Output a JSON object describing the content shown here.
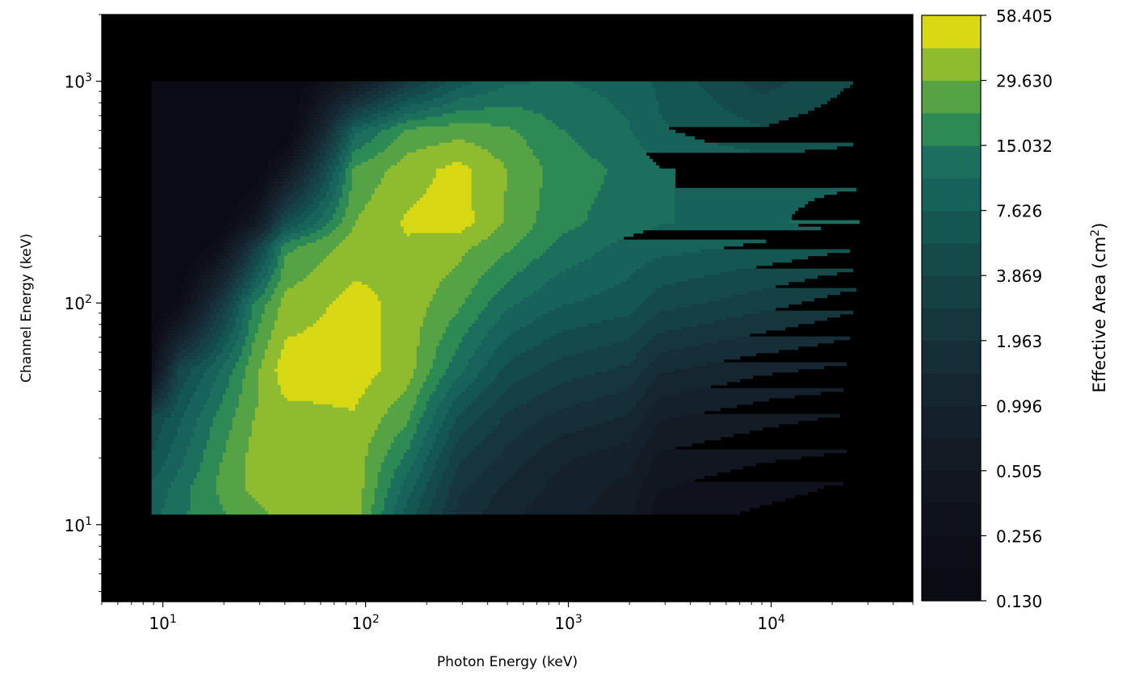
{
  "chart_data": {
    "type": "contour",
    "xlabel": "Photon Energy (keV)",
    "ylabel": "Channel Energy (keV)",
    "x_scale": "log",
    "y_scale": "log",
    "xlim": [
      5,
      50000
    ],
    "ylim": [
      4.5,
      2000
    ],
    "x_ticks": [
      {
        "base": "10",
        "exp": "1"
      },
      {
        "base": "10",
        "exp": "2"
      },
      {
        "base": "10",
        "exp": "3"
      },
      {
        "base": "10",
        "exp": "4"
      }
    ],
    "y_ticks": [
      {
        "base": "10",
        "exp": "1"
      },
      {
        "base": "10",
        "exp": "2"
      },
      {
        "base": "10",
        "exp": "3"
      }
    ],
    "background_color": "#000000",
    "grid": false,
    "colorbar": {
      "label": "Effective Area (cm",
      "label_sup": "2",
      "label_tail": ")",
      "ticks": [
        "58.405",
        "29.630",
        "15.032",
        "7.626",
        "3.869",
        "1.963",
        "0.996",
        "0.505",
        "0.256",
        "0.130"
      ],
      "min": 0.13,
      "max": 82,
      "colors": [
        "#0b0b14",
        "#0d0e17",
        "#0f111c",
        "#111620",
        "#131b25",
        "#14202b",
        "#152631",
        "#162e37",
        "#16363d",
        "#154044",
        "#144b4a",
        "#135652",
        "#17625a",
        "#1b6f5c",
        "#2e8a55",
        "#55a345",
        "#8fbc2f",
        "#d8d815"
      ]
    },
    "data_region": {
      "x_range": [
        8.8,
        28000
      ],
      "y_range": [
        11,
        1000
      ],
      "description_levels": "effective area peaks near photon 30-300 keV and channel 40-400 keV"
    },
    "x_grid": [
      8.8,
      12,
      18,
      28,
      40,
      88,
      160,
      290,
      500,
      900,
      2000,
      2800,
      9000,
      28000
    ],
    "y_grid": [
      11,
      15,
      20,
      30,
      50,
      100,
      180,
      230,
      400,
      600,
      1000
    ],
    "z": [
      [
        12,
        18,
        25,
        35,
        45,
        50,
        8,
        2.0,
        1.2,
        0.9,
        0.6,
        0.3,
        0.25,
        0.22
      ],
      [
        10,
        16,
        28,
        45,
        50,
        52,
        12,
        2.5,
        1.5,
        1.0,
        0.7,
        0.4,
        0.3,
        0.25
      ],
      [
        7,
        12,
        25,
        45,
        50,
        50,
        18,
        3.5,
        2.0,
        1.2,
        0.9,
        0.5,
        0.4,
        0.35
      ],
      [
        5,
        9,
        20,
        40,
        50,
        55,
        30,
        6,
        3.0,
        2.0,
        1.5,
        0.8,
        0.6,
        0.5
      ],
      [
        0.3,
        5,
        12,
        35,
        70,
        70,
        48,
        15,
        6,
        4.0,
        3.0,
        1.7,
        1.2,
        1.0
      ],
      [
        0.1,
        0.2,
        2,
        20,
        45,
        65,
        50,
        30,
        15,
        10,
        8,
        5.5,
        3.8,
        2.5
      ],
      [
        0.1,
        0.1,
        0.2,
        3,
        25,
        48,
        55,
        45,
        30,
        18,
        12,
        11,
        9,
        7
      ],
      [
        0.1,
        0.1,
        0.1,
        0.5,
        6,
        40,
        60,
        68,
        38,
        22,
        16,
        14,
        12,
        20
      ],
      [
        0.1,
        0.1,
        0.1,
        0.1,
        0.5,
        30,
        48,
        65,
        40,
        24,
        18,
        14,
        12,
        11
      ],
      [
        0.1,
        0.1,
        0.1,
        0.1,
        0.1,
        12,
        30,
        35,
        30,
        20,
        14,
        10,
        7,
        9
      ],
      [
        0.1,
        0.1,
        0.1,
        0.1,
        0.1,
        0.6,
        3,
        8,
        13,
        14,
        12,
        9,
        4,
        7
      ]
    ]
  }
}
